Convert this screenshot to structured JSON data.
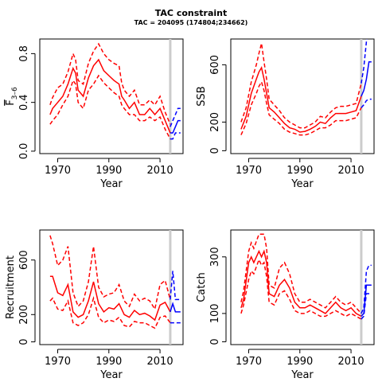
{
  "figure": {
    "title": "TAC constraint",
    "subtitle": "TAC = 204095 (174804;234662)",
    "colors": {
      "historic": "#ff0000",
      "forecast": "#0000ff",
      "marker": "#cccccc",
      "axis": "#000000"
    },
    "marker_year": 2014
  },
  "chart_data": [
    {
      "id": "fbar",
      "type": "line",
      "title": "",
      "xlabel": "Year",
      "ylabel": "F̅ 3–6",
      "ylabel_main": "F",
      "ylabel_sub": "3–6",
      "xlim": [
        1963,
        2019
      ],
      "ylim": [
        -0.02,
        0.92
      ],
      "xticks": [
        1970,
        1990,
        2010
      ],
      "yticks": [
        0.0,
        0.4,
        0.8
      ],
      "yticklabels": [
        "0.0",
        "0.4",
        "0.8"
      ],
      "historic": {
        "x": [
          1967,
          1968,
          1970,
          1972,
          1974,
          1976,
          1977,
          1978,
          1980,
          1982,
          1984,
          1986,
          1988,
          1990,
          1992,
          1994,
          1995,
          1996,
          1998,
          2000,
          2002,
          2004,
          2006,
          2008,
          2010,
          2012,
          2014
        ],
        "mid": [
          0.3,
          0.35,
          0.4,
          0.45,
          0.55,
          0.68,
          0.64,
          0.5,
          0.45,
          0.6,
          0.7,
          0.75,
          0.66,
          0.62,
          0.58,
          0.55,
          0.45,
          0.42,
          0.35,
          0.4,
          0.3,
          0.3,
          0.35,
          0.3,
          0.35,
          0.25,
          0.15
        ],
        "low": [
          0.22,
          0.25,
          0.3,
          0.38,
          0.45,
          0.58,
          0.55,
          0.4,
          0.35,
          0.5,
          0.55,
          0.62,
          0.56,
          0.52,
          0.48,
          0.45,
          0.38,
          0.35,
          0.3,
          0.3,
          0.25,
          0.25,
          0.28,
          0.25,
          0.28,
          0.18,
          0.1
        ],
        "high": [
          0.38,
          0.44,
          0.52,
          0.55,
          0.65,
          0.8,
          0.75,
          0.58,
          0.55,
          0.72,
          0.82,
          0.88,
          0.8,
          0.75,
          0.72,
          0.7,
          0.56,
          0.5,
          0.45,
          0.5,
          0.38,
          0.38,
          0.42,
          0.38,
          0.45,
          0.32,
          0.22
        ]
      },
      "forecast": {
        "x": [
          2014,
          2015,
          2016,
          2017,
          2018
        ],
        "mid": [
          0.15,
          0.15,
          0.2,
          0.25,
          0.25
        ],
        "low": [
          0.1,
          0.1,
          0.15,
          0.15,
          0.15
        ],
        "high": [
          0.2,
          0.25,
          0.3,
          0.35,
          0.35
        ]
      }
    },
    {
      "id": "ssb",
      "type": "line",
      "title": "",
      "xlabel": "Year",
      "ylabel": "SSB",
      "xlim": [
        1963,
        2019
      ],
      "ylim": [
        -20,
        780
      ],
      "xticks": [
        1970,
        1990,
        2010
      ],
      "yticks": [
        0,
        200,
        600
      ],
      "yticklabels": [
        "0",
        "200",
        "600"
      ],
      "historic": {
        "x": [
          1967,
          1969,
          1971,
          1973,
          1974,
          1975,
          1976,
          1977,
          1978,
          1980,
          1982,
          1984,
          1986,
          1988,
          1990,
          1992,
          1994,
          1996,
          1998,
          2000,
          2002,
          2004,
          2006,
          2008,
          2010,
          2012,
          2014
        ],
        "mid": [
          150,
          240,
          400,
          500,
          550,
          580,
          500,
          400,
          300,
          270,
          230,
          190,
          160,
          150,
          130,
          135,
          150,
          170,
          200,
          190,
          230,
          260,
          260,
          260,
          270,
          280,
          380
        ],
        "low": [
          110,
          190,
          320,
          400,
          450,
          480,
          420,
          330,
          250,
          220,
          190,
          150,
          130,
          120,
          110,
          110,
          120,
          140,
          160,
          160,
          180,
          210,
          210,
          210,
          220,
          230,
          300
        ],
        "high": [
          200,
          300,
          480,
          600,
          680,
          750,
          620,
          500,
          360,
          320,
          280,
          230,
          200,
          180,
          160,
          160,
          180,
          200,
          240,
          230,
          270,
          300,
          310,
          310,
          320,
          330,
          470
        ]
      },
      "forecast": {
        "x": [
          2014,
          2015,
          2016,
          2017,
          2018
        ],
        "mid": [
          380,
          420,
          500,
          620,
          620
        ],
        "low": [
          300,
          320,
          350,
          360,
          360
        ],
        "high": [
          470,
          580,
          760,
          900,
          900
        ]
      }
    },
    {
      "id": "recruitment",
      "type": "line",
      "title": "",
      "xlabel": "Year",
      "ylabel": "Recruitment",
      "xlim": [
        1963,
        2019
      ],
      "ylim": [
        -20,
        820
      ],
      "xticks": [
        1970,
        1990,
        2010
      ],
      "yticks": [
        0,
        200,
        600
      ],
      "yticklabels": [
        "0",
        "200",
        "600"
      ],
      "historic": {
        "x": [
          1967,
          1968,
          1970,
          1972,
          1974,
          1976,
          1978,
          1980,
          1982,
          1984,
          1986,
          1988,
          1990,
          1992,
          1994,
          1996,
          1998,
          2000,
          2002,
          2004,
          2006,
          2008,
          2010,
          2012,
          2014
        ],
        "mid": [
          480,
          480,
          360,
          340,
          420,
          220,
          180,
          200,
          300,
          440,
          280,
          220,
          250,
          240,
          280,
          200,
          180,
          230,
          200,
          210,
          190,
          160,
          270,
          290,
          220
        ],
        "low": [
          300,
          320,
          240,
          230,
          300,
          140,
          120,
          140,
          200,
          320,
          180,
          140,
          160,
          150,
          180,
          120,
          110,
          150,
          140,
          140,
          120,
          100,
          180,
          190,
          140
        ],
        "high": [
          780,
          720,
          560,
          600,
          700,
          360,
          260,
          300,
          440,
          700,
          400,
          330,
          350,
          360,
          420,
          300,
          260,
          350,
          300,
          320,
          300,
          240,
          420,
          450,
          310
        ]
      },
      "forecast": {
        "x": [
          2014,
          2015,
          2016,
          2017,
          2018
        ],
        "mid": [
          220,
          280,
          220,
          220,
          220
        ],
        "low": [
          140,
          140,
          140,
          140,
          140
        ],
        "high": [
          310,
          520,
          310,
          310,
          310
        ]
      }
    },
    {
      "id": "catch",
      "type": "line",
      "title": "",
      "xlabel": "Year",
      "ylabel": "Catch",
      "xlim": [
        1963,
        2019
      ],
      "ylim": [
        -10,
        395
      ],
      "xticks": [
        1970,
        1990,
        2010
      ],
      "yticks": [
        0,
        100,
        300
      ],
      "yticklabels": [
        "0",
        "100",
        "300"
      ],
      "historic": {
        "x": [
          1967,
          1968,
          1970,
          1971,
          1972,
          1974,
          1975,
          1976,
          1977,
          1978,
          1980,
          1982,
          1984,
          1986,
          1988,
          1990,
          1992,
          1994,
          1996,
          1998,
          2000,
          2002,
          2004,
          2006,
          2008,
          2010,
          2012,
          2014
        ],
        "mid": [
          120,
          150,
          280,
          300,
          280,
          320,
          300,
          320,
          280,
          170,
          160,
          200,
          220,
          190,
          140,
          120,
          120,
          130,
          120,
          110,
          100,
          120,
          140,
          120,
          110,
          120,
          100,
          90
        ],
        "low": [
          100,
          130,
          220,
          250,
          240,
          290,
          270,
          280,
          230,
          140,
          130,
          170,
          180,
          150,
          110,
          100,
          100,
          110,
          100,
          90,
          90,
          100,
          110,
          100,
          90,
          100,
          90,
          80
        ],
        "high": [
          140,
          180,
          320,
          350,
          330,
          380,
          380,
          380,
          330,
          200,
          190,
          260,
          280,
          240,
          170,
          140,
          140,
          150,
          140,
          130,
          120,
          140,
          160,
          140,
          130,
          140,
          120,
          100
        ]
      },
      "forecast": {
        "x": [
          2014,
          2015,
          2016,
          2017,
          2018
        ],
        "mid": [
          90,
          100,
          200,
          200,
          200
        ],
        "low": [
          80,
          90,
          170,
          170,
          170
        ],
        "high": [
          100,
          120,
          250,
          270,
          270
        ]
      }
    }
  ]
}
